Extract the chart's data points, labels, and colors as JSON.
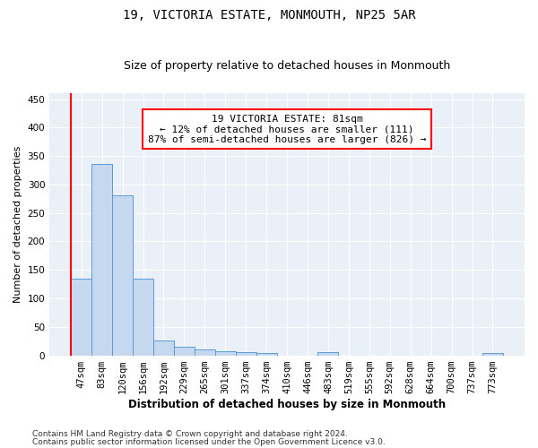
{
  "title": "19, VICTORIA ESTATE, MONMOUTH, NP25 5AR",
  "subtitle": "Size of property relative to detached houses in Monmouth",
  "xlabel": "Distribution of detached houses by size in Monmouth",
  "ylabel": "Number of detached properties",
  "bar_labels": [
    "47sqm",
    "83sqm",
    "120sqm",
    "156sqm",
    "192sqm",
    "229sqm",
    "265sqm",
    "301sqm",
    "337sqm",
    "374sqm",
    "410sqm",
    "446sqm",
    "483sqm",
    "519sqm",
    "555sqm",
    "592sqm",
    "628sqm",
    "664sqm",
    "700sqm",
    "737sqm",
    "773sqm"
  ],
  "bar_heights": [
    135,
    336,
    281,
    134,
    26,
    15,
    11,
    7,
    6,
    4,
    0,
    0,
    5,
    0,
    0,
    0,
    0,
    0,
    0,
    0,
    4
  ],
  "bar_color": "#c5d8f0",
  "bar_edgecolor": "#5b9bd5",
  "annotation_text": "19 VICTORIA ESTATE: 81sqm\n← 12% of detached houses are smaller (111)\n87% of semi-detached houses are larger (826) →",
  "annotation_box_color": "white",
  "annotation_box_edgecolor": "red",
  "red_line_color": "red",
  "ylim": [
    0,
    460
  ],
  "yticks": [
    0,
    50,
    100,
    150,
    200,
    250,
    300,
    350,
    400,
    450
  ],
  "background_color": "#eaf0f8",
  "footer_line1": "Contains HM Land Registry data © Crown copyright and database right 2024.",
  "footer_line2": "Contains public sector information licensed under the Open Government Licence v3.0.",
  "title_fontsize": 10,
  "subtitle_fontsize": 9,
  "xlabel_fontsize": 8.5,
  "ylabel_fontsize": 8,
  "tick_fontsize": 7.5,
  "annotation_fontsize": 8,
  "footer_fontsize": 6.5
}
